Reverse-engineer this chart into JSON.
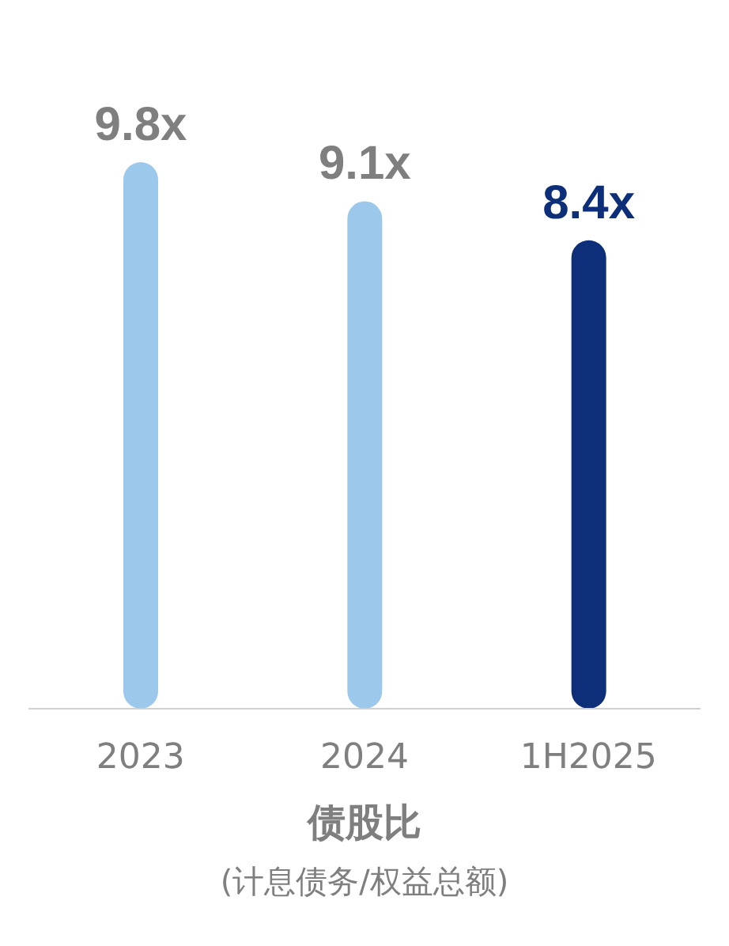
{
  "chart_data": {
    "type": "bar",
    "title": "债股比",
    "subtitle": "(计息债务/权益总额)",
    "categories": [
      "2023",
      "2024",
      "1H2025"
    ],
    "values": [
      9.8,
      9.1,
      8.4
    ],
    "value_labels": [
      "9.8x",
      "9.1x",
      "8.4x"
    ],
    "colors": [
      "#9cc8ec",
      "#9cc8ec",
      "#0d2f7a"
    ],
    "grid": false,
    "legend": false
  }
}
